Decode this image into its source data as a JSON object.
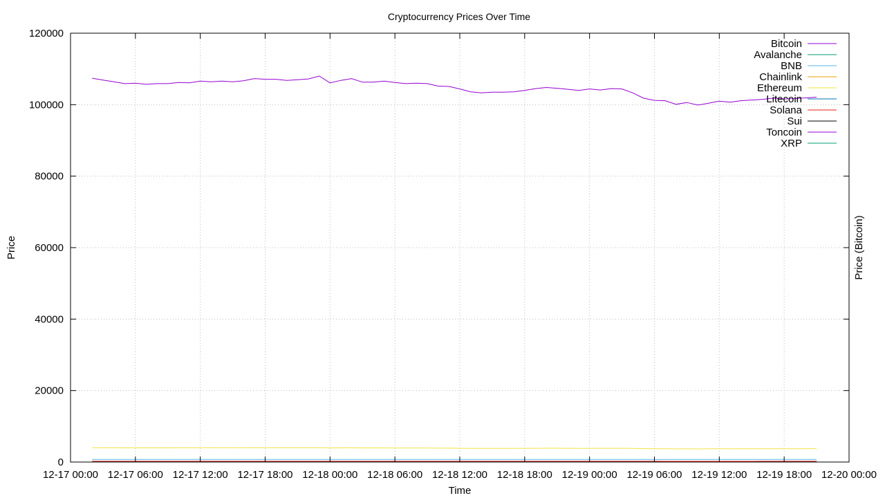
{
  "chart_data": {
    "type": "line",
    "title": "Cryptocurrency Prices Over Time",
    "xlabel": "Time",
    "ylabel": "Price",
    "y2label": "Price (Bitcoin)",
    "ylim": [
      0,
      120000
    ],
    "y_ticks": [
      0,
      20000,
      40000,
      60000,
      80000,
      100000,
      120000
    ],
    "y_tick_labels": [
      "0",
      "20000",
      "40000",
      "60000",
      "80000",
      "100000",
      "120000"
    ],
    "xlim": [
      "2024-12-17 00:00",
      "2024-12-20 00:00"
    ],
    "x_ticks": [
      "2024-12-17 00:00",
      "2024-12-17 06:00",
      "2024-12-17 12:00",
      "2024-12-17 18:00",
      "2024-12-18 00:00",
      "2024-12-18 06:00",
      "2024-12-18 12:00",
      "2024-12-18 18:00",
      "2024-12-19 00:00",
      "2024-12-19 06:00",
      "2024-12-19 12:00",
      "2024-12-19 18:00",
      "2024-12-20 00:00"
    ],
    "x_tick_labels": [
      "12-17 00:00",
      "12-17 06:00",
      "12-17 12:00",
      "12-17 18:00",
      "12-18 00:00",
      "12-18 06:00",
      "12-18 12:00",
      "12-18 18:00",
      "12-19 00:00",
      "12-19 06:00",
      "12-19 12:00",
      "12-19 18:00",
      "12-20 00:00"
    ],
    "grid": true,
    "legend_position": "top-right",
    "x": [
      "2024-12-17 02:00",
      "2024-12-17 03:00",
      "2024-12-17 04:00",
      "2024-12-17 05:00",
      "2024-12-17 06:00",
      "2024-12-17 07:00",
      "2024-12-17 08:00",
      "2024-12-17 09:00",
      "2024-12-17 10:00",
      "2024-12-17 11:00",
      "2024-12-17 12:00",
      "2024-12-17 13:00",
      "2024-12-17 14:00",
      "2024-12-17 15:00",
      "2024-12-17 16:00",
      "2024-12-17 17:00",
      "2024-12-17 18:00",
      "2024-12-17 19:00",
      "2024-12-17 20:00",
      "2024-12-17 21:00",
      "2024-12-17 22:00",
      "2024-12-17 23:00",
      "2024-12-18 00:00",
      "2024-12-18 01:00",
      "2024-12-18 02:00",
      "2024-12-18 03:00",
      "2024-12-18 04:00",
      "2024-12-18 05:00",
      "2024-12-18 06:00",
      "2024-12-18 07:00",
      "2024-12-18 08:00",
      "2024-12-18 09:00",
      "2024-12-18 10:00",
      "2024-12-18 11:00",
      "2024-12-18 12:00",
      "2024-12-18 13:00",
      "2024-12-18 14:00",
      "2024-12-18 15:00",
      "2024-12-18 16:00",
      "2024-12-18 17:00",
      "2024-12-18 18:00",
      "2024-12-18 19:00",
      "2024-12-18 20:00",
      "2024-12-18 21:00",
      "2024-12-18 22:00",
      "2024-12-18 23:00",
      "2024-12-19 00:00",
      "2024-12-19 01:00",
      "2024-12-19 02:00",
      "2024-12-19 03:00",
      "2024-12-19 04:00",
      "2024-12-19 05:00",
      "2024-12-19 06:00",
      "2024-12-19 07:00",
      "2024-12-19 08:00",
      "2024-12-19 09:00",
      "2024-12-19 10:00",
      "2024-12-19 11:00",
      "2024-12-19 12:00",
      "2024-12-19 13:00",
      "2024-12-19 14:00",
      "2024-12-19 15:00",
      "2024-12-19 16:00",
      "2024-12-19 17:00",
      "2024-12-19 18:00",
      "2024-12-19 19:00",
      "2024-12-19 20:00",
      "2024-12-19 21:00"
    ],
    "series": [
      {
        "name": "Bitcoin",
        "color": "#9400d3",
        "values": [
          107400,
          106900,
          106400,
          105900,
          106000,
          105700,
          105900,
          105900,
          106200,
          106100,
          106600,
          106400,
          106600,
          106400,
          106700,
          107300,
          107100,
          107100,
          106800,
          107000,
          107200,
          108000,
          106100,
          106800,
          107300,
          106300,
          106300,
          106600,
          106200,
          105900,
          106000,
          105900,
          105200,
          105100,
          104400,
          103600,
          103300,
          103500,
          103500,
          103600,
          104000,
          104500,
          104800,
          104600,
          104300,
          104000,
          104400,
          104100,
          104500,
          104400,
          103300,
          101800,
          101200,
          101100,
          100100,
          100600,
          99900,
          100400,
          101000,
          100700,
          101100,
          101300,
          101500,
          101800,
          101600,
          101700,
          101900,
          102100
        ]
      },
      {
        "name": "Avalanche",
        "color": "#009e73",
        "values": [
          50,
          50,
          50,
          50,
          50,
          50,
          50,
          50,
          50,
          50,
          50,
          50,
          50,
          50,
          50,
          50,
          50,
          50,
          50,
          50,
          50,
          50,
          48,
          48,
          48,
          48,
          48,
          48,
          48,
          48,
          48,
          48,
          47,
          47,
          47,
          46,
          46,
          46,
          46,
          46,
          46,
          46,
          46,
          46,
          46,
          46,
          46,
          46,
          46,
          46,
          45,
          44,
          44,
          44,
          43,
          43,
          43,
          43,
          43,
          43,
          43,
          43,
          43,
          43,
          43,
          43,
          43,
          43
        ]
      },
      {
        "name": "BNB",
        "color": "#56b4e9",
        "values": [
          740,
          740,
          738,
          736,
          736,
          735,
          736,
          736,
          737,
          737,
          738,
          737,
          738,
          737,
          738,
          740,
          739,
          739,
          738,
          739,
          740,
          742,
          735,
          737,
          738,
          735,
          735,
          736,
          735,
          734,
          734,
          734,
          731,
          731,
          728,
          725,
          724,
          725,
          725,
          725,
          727,
          729,
          730,
          729,
          728,
          727,
          728,
          727,
          729,
          728,
          724,
          719,
          717,
          716,
          713,
          715,
          712,
          714,
          716,
          715,
          716,
          717,
          718,
          719,
          718,
          718,
          719,
          720
        ]
      },
      {
        "name": "Chainlink",
        "color": "#e69f00",
        "values": [
          28,
          28,
          28,
          28,
          28,
          28,
          28,
          28,
          28,
          28,
          28,
          28,
          28,
          28,
          28,
          28,
          28,
          28,
          28,
          28,
          28,
          28,
          27,
          27,
          27,
          27,
          27,
          27,
          27,
          27,
          27,
          27,
          27,
          27,
          26,
          26,
          26,
          26,
          26,
          26,
          26,
          26,
          26,
          26,
          26,
          26,
          26,
          26,
          26,
          26,
          25,
          25,
          25,
          25,
          24,
          24,
          24,
          24,
          24,
          24,
          24,
          24,
          24,
          24,
          24,
          24,
          24,
          24
        ]
      },
      {
        "name": "Ethereum",
        "color": "#f0e442",
        "values": [
          4000,
          3990,
          3980,
          3970,
          3975,
          3960,
          3970,
          3970,
          3985,
          3980,
          4000,
          3995,
          4000,
          3990,
          4000,
          4020,
          4010,
          4010,
          4000,
          4005,
          4010,
          4030,
          3950,
          3970,
          3980,
          3940,
          3940,
          3950,
          3930,
          3920,
          3925,
          3920,
          3890,
          3885,
          3860,
          3830,
          3820,
          3825,
          3825,
          3830,
          3845,
          3860,
          3870,
          3865,
          3850,
          3840,
          3855,
          3845,
          3860,
          3855,
          3810,
          3750,
          3720,
          3715,
          3680,
          3700,
          3670,
          3690,
          3710,
          3700,
          3715,
          3720,
          3730,
          3740,
          3735,
          3740,
          3745,
          3750
        ]
      },
      {
        "name": "Litecoin",
        "color": "#0072b2",
        "values": [
          128,
          127,
          127,
          126,
          126,
          126,
          126,
          126,
          127,
          127,
          127,
          127,
          127,
          127,
          127,
          128,
          128,
          128,
          127,
          127,
          128,
          129,
          126,
          127,
          127,
          126,
          126,
          126,
          126,
          125,
          125,
          125,
          124,
          124,
          123,
          122,
          122,
          122,
          122,
          122,
          123,
          123,
          124,
          123,
          123,
          123,
          123,
          123,
          123,
          123,
          122,
          120,
          119,
          119,
          118,
          118,
          117,
          118,
          119,
          118,
          119,
          119,
          119,
          120,
          119,
          120,
          120,
          120
        ]
      },
      {
        "name": "Solana",
        "color": "#e51e10",
        "values": [
          220,
          219,
          218,
          217,
          217,
          216,
          217,
          217,
          218,
          217,
          218,
          218,
          218,
          218,
          218,
          220,
          219,
          219,
          219,
          219,
          220,
          222,
          217,
          218,
          219,
          217,
          217,
          217,
          216,
          216,
          216,
          216,
          214,
          214,
          212,
          210,
          209,
          210,
          210,
          210,
          211,
          212,
          213,
          212,
          212,
          211,
          212,
          211,
          212,
          212,
          209,
          205,
          204,
          203,
          201,
          202,
          200,
          201,
          203,
          202,
          203,
          203,
          204,
          204,
          204,
          204,
          205,
          205
        ]
      },
      {
        "name": "Sui",
        "color": "#000000",
        "values": [
          4.6,
          4.6,
          4.6,
          4.5,
          4.5,
          4.5,
          4.5,
          4.5,
          4.5,
          4.5,
          4.6,
          4.6,
          4.6,
          4.6,
          4.6,
          4.6,
          4.6,
          4.6,
          4.6,
          4.6,
          4.6,
          4.7,
          4.5,
          4.6,
          4.6,
          4.5,
          4.5,
          4.6,
          4.5,
          4.5,
          4.5,
          4.5,
          4.5,
          4.5,
          4.4,
          4.4,
          4.4,
          4.4,
          4.4,
          4.4,
          4.4,
          4.5,
          4.5,
          4.5,
          4.4,
          4.4,
          4.5,
          4.4,
          4.5,
          4.5,
          4.4,
          4.3,
          4.3,
          4.3,
          4.2,
          4.2,
          4.2,
          4.2,
          4.3,
          4.3,
          4.3,
          4.3,
          4.3,
          4.3,
          4.3,
          4.3,
          4.3,
          4.3
        ]
      },
      {
        "name": "Toncoin",
        "color": "#9400d3",
        "values": [
          6.3,
          6.3,
          6.3,
          6.2,
          6.2,
          6.2,
          6.2,
          6.2,
          6.2,
          6.2,
          6.3,
          6.3,
          6.3,
          6.3,
          6.3,
          6.3,
          6.3,
          6.3,
          6.3,
          6.3,
          6.3,
          6.4,
          6.2,
          6.3,
          6.3,
          6.2,
          6.2,
          6.3,
          6.2,
          6.2,
          6.2,
          6.2,
          6.2,
          6.2,
          6.1,
          6.1,
          6.0,
          6.1,
          6.1,
          6.1,
          6.1,
          6.1,
          6.2,
          6.1,
          6.1,
          6.1,
          6.1,
          6.1,
          6.1,
          6.1,
          6.0,
          5.9,
          5.9,
          5.9,
          5.8,
          5.8,
          5.8,
          5.8,
          5.9,
          5.9,
          5.9,
          5.9,
          5.9,
          5.9,
          5.9,
          5.9,
          5.9,
          5.9
        ]
      },
      {
        "name": "XRP",
        "color": "#009e73",
        "values": [
          2.5,
          2.5,
          2.5,
          2.5,
          2.5,
          2.5,
          2.5,
          2.5,
          2.5,
          2.5,
          2.5,
          2.5,
          2.5,
          2.5,
          2.5,
          2.5,
          2.5,
          2.5,
          2.5,
          2.5,
          2.5,
          2.6,
          2.5,
          2.5,
          2.5,
          2.5,
          2.5,
          2.5,
          2.5,
          2.5,
          2.5,
          2.5,
          2.4,
          2.4,
          2.4,
          2.4,
          2.4,
          2.4,
          2.4,
          2.4,
          2.4,
          2.4,
          2.4,
          2.4,
          2.4,
          2.4,
          2.4,
          2.4,
          2.4,
          2.4,
          2.4,
          2.3,
          2.3,
          2.3,
          2.3,
          2.3,
          2.3,
          2.3,
          2.3,
          2.3,
          2.3,
          2.3,
          2.3,
          2.3,
          2.3,
          2.3,
          2.3,
          2.3
        ]
      }
    ]
  }
}
